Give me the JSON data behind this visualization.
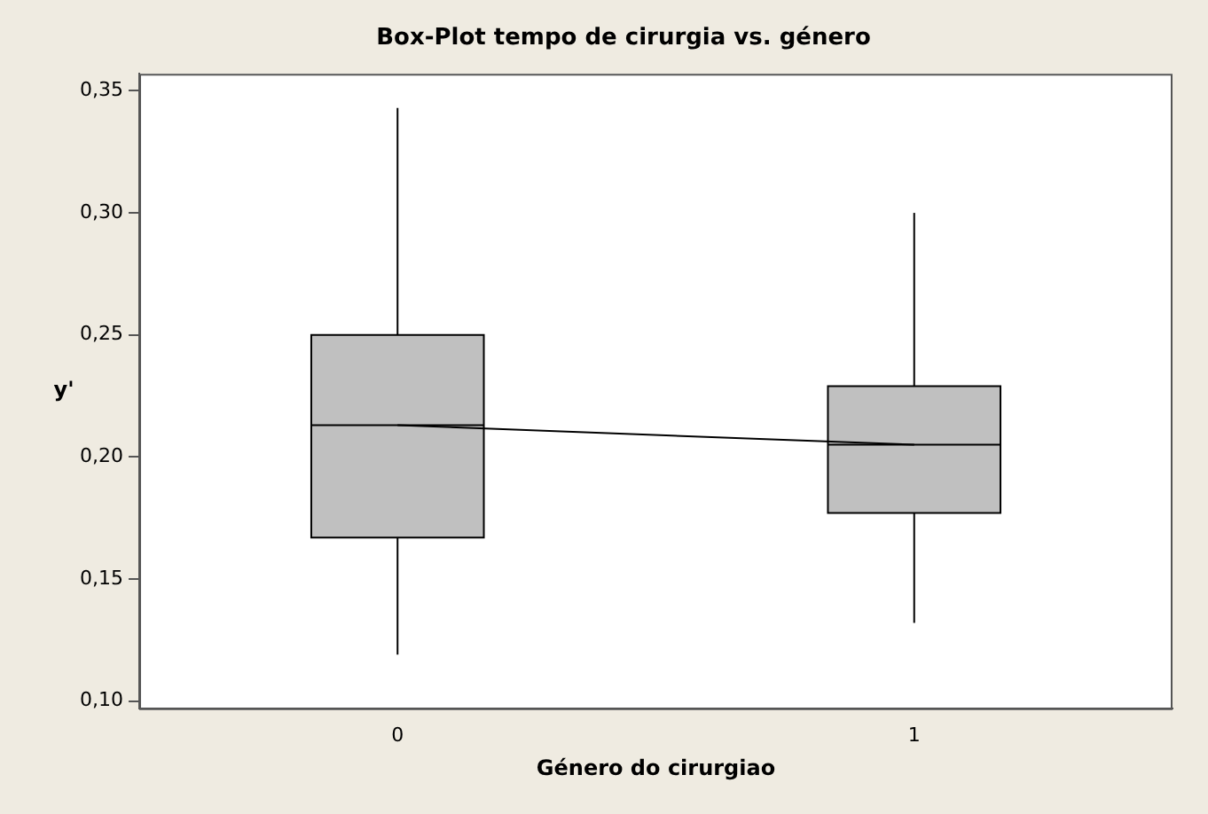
{
  "chart_data": {
    "type": "box",
    "title": "Box-Plot tempo de cirurgia vs. género",
    "xlabel": "Género do cirurgiao",
    "ylabel": "y'",
    "categories": [
      "0",
      "1"
    ],
    "series": [
      {
        "color": "#c0c0c0",
        "boxes": [
          {
            "low": 0.119,
            "q1": 0.167,
            "median": 0.213,
            "q3": 0.25,
            "high": 0.343
          },
          {
            "low": 0.132,
            "q1": 0.177,
            "median": 0.205,
            "q3": 0.229,
            "high": 0.3
          }
        ]
      },
      {
        "type": "line",
        "color": "#000000",
        "values": [
          0.213,
          0.205
        ]
      }
    ],
    "ylim": [
      0.097,
      0.357
    ],
    "yticks": [
      {
        "value": 0.1,
        "label": "0,10"
      },
      {
        "value": 0.15,
        "label": "0,15"
      },
      {
        "value": 0.2,
        "label": "0,20"
      },
      {
        "value": 0.25,
        "label": "0,25"
      },
      {
        "value": 0.3,
        "label": "0,30"
      },
      {
        "value": 0.35,
        "label": "0,35"
      }
    ],
    "grid": false,
    "legend": false,
    "marker": "none"
  }
}
